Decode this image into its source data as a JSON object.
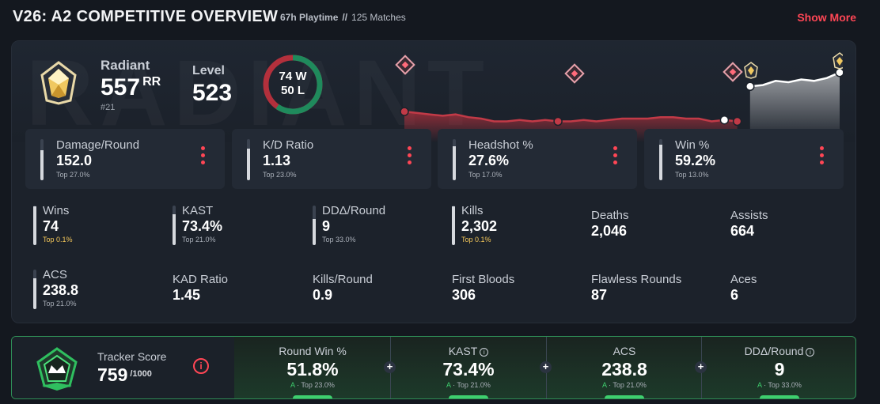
{
  "header": {
    "title": "V26: A2 COMPETITIVE OVERVIEW",
    "playtime": "67h Playtime",
    "separator": "//",
    "matches": "125 Matches",
    "show_more": "Show More"
  },
  "rank": {
    "name": "Radiant",
    "rr": "557",
    "rr_unit": "RR",
    "position": "#21",
    "level_label": "Level",
    "level": "523",
    "wins_text": "74 W",
    "losses_text": "50 L",
    "wins": 74,
    "losses": 50,
    "background_word": "RADIANT"
  },
  "top_stats": [
    {
      "label": "Damage/Round",
      "value": "152.0",
      "top": "Top 27.0%",
      "pct": 73
    },
    {
      "label": "K/D Ratio",
      "value": "1.13",
      "top": "Top 23.0%",
      "pct": 77
    },
    {
      "label": "Headshot %",
      "value": "27.6%",
      "top": "Top 17.0%",
      "pct": 83
    },
    {
      "label": "Win %",
      "value": "59.2%",
      "top": "Top 13.0%",
      "pct": 87
    }
  ],
  "grid_stats": [
    {
      "label": "Wins",
      "value": "74",
      "top": "Top 0.1%",
      "gold": true,
      "pct": 99
    },
    {
      "label": "KAST",
      "value": "73.4%",
      "top": "Top 21.0%",
      "gold": false,
      "pct": 79
    },
    {
      "label": "DDΔ/Round",
      "value": "9",
      "top": "Top 33.0%",
      "gold": false,
      "pct": 67
    },
    {
      "label": "Kills",
      "value": "2,302",
      "top": "Top 0.1%",
      "gold": true,
      "pct": 99
    },
    {
      "label": "Deaths",
      "value": "2,046"
    },
    {
      "label": "Assists",
      "value": "664"
    },
    {
      "label": "ACS",
      "value": "238.8",
      "top": "Top 21.0%",
      "gold": false,
      "pct": 79
    },
    {
      "label": "KAD Ratio",
      "value": "1.45"
    },
    {
      "label": "Kills/Round",
      "value": "0.9"
    },
    {
      "label": "First Bloods",
      "value": "306"
    },
    {
      "label": "Flawless Rounds",
      "value": "87"
    },
    {
      "label": "Aces",
      "value": "6"
    }
  ],
  "tracker": {
    "label": "Tracker Score",
    "score": "759",
    "max": "/1000",
    "info": "i",
    "cells": [
      {
        "label": "Round Win %",
        "info": false,
        "value": "51.8%",
        "grade": "A",
        "top": " · Top 23.0%"
      },
      {
        "label": "KAST",
        "info": true,
        "value": "73.4%",
        "grade": "A",
        "top": " · Top 21.0%"
      },
      {
        "label": "ACS",
        "info": false,
        "value": "238.8",
        "grade": "A",
        "top": " · Top 21.0%"
      },
      {
        "label": "DDΔ/Round",
        "info": true,
        "value": "9",
        "grade": "A",
        "top": " · Top 33.0%"
      }
    ]
  },
  "rr_history": [
    62,
    61,
    60,
    59,
    60,
    58,
    57,
    55,
    55,
    56,
    55,
    56,
    55,
    55,
    56,
    55,
    56,
    57,
    57,
    57,
    58,
    58,
    57,
    57,
    55,
    56,
    55,
    80,
    81,
    84,
    83,
    85,
    84,
    86,
    90
  ],
  "colors": {
    "accent": "#ff4655",
    "win": "#1f8a5c",
    "loss": "#b3303c",
    "green": "#3ecf6e"
  }
}
